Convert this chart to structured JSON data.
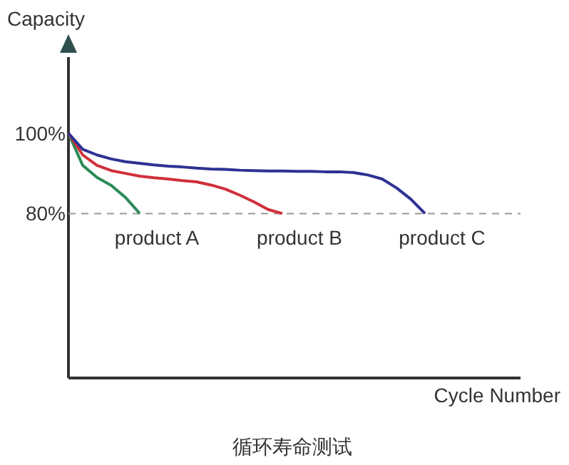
{
  "chart_data": {
    "type": "line",
    "title": "循环寿命测试",
    "xlabel": "Cycle Number",
    "ylabel": "Capacity",
    "categories": [
      null,
      null,
      null,
      null,
      null,
      null,
      null,
      null,
      null,
      null,
      null,
      null,
      null,
      null,
      null,
      null,
      null,
      null,
      null,
      null,
      null,
      null,
      null,
      null,
      null,
      null,
      null,
      null,
      null,
      null,
      null,
      null
    ],
    "series": [
      {
        "name": "product A",
        "color": "#2e8b57",
        "values": [
          100,
          92,
          89,
          87,
          84,
          80,
          null,
          null,
          null,
          null,
          null,
          null,
          null,
          null,
          null,
          null,
          null,
          null,
          null,
          null,
          null,
          null,
          null,
          null,
          null,
          null,
          null,
          null,
          null,
          null,
          null,
          null
        ]
      },
      {
        "name": "product B",
        "color": "#d0303a",
        "values": [
          100,
          94.6,
          92,
          90.7,
          90,
          89.3,
          88.9,
          88.6,
          88.2,
          87.9,
          87.1,
          86.1,
          84.6,
          82.9,
          81,
          80,
          null,
          null,
          null,
          null,
          null,
          null,
          null,
          null,
          null,
          null,
          null,
          null,
          null,
          null,
          null,
          null
        ]
      },
      {
        "name": "product C",
        "color": "#2e3192",
        "values": [
          100,
          96,
          94.6,
          93.6,
          92.9,
          92.5,
          92.1,
          91.8,
          91.6,
          91.3,
          91.1,
          91,
          90.8,
          90.7,
          90.6,
          90.6,
          90.5,
          90.5,
          90.4,
          90.4,
          90.2,
          89.6,
          88.6,
          86.4,
          83.6,
          80,
          null,
          null,
          null,
          null,
          null,
          null
        ]
      }
    ],
    "ylim": [
      39,
      119
    ],
    "yticks": [
      {
        "value": 80,
        "label": "80%"
      },
      {
        "value": 100,
        "label": "100%"
      }
    ],
    "ref_lines": [
      {
        "axis": "y",
        "value": 80,
        "color": "#999999",
        "line_style": "dashed"
      }
    ],
    "grid": false,
    "legend": false,
    "marker": "none",
    "line_style": "solid"
  }
}
